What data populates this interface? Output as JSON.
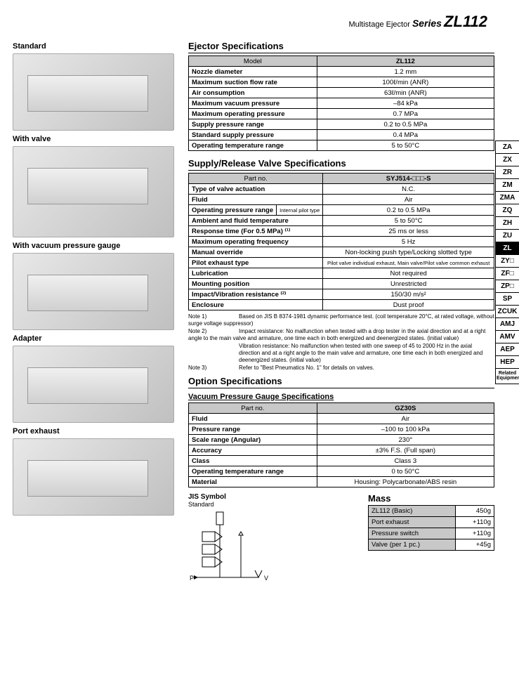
{
  "header": {
    "prefix": "Multistage Ejector",
    "series": "Series",
    "model": "ZL112"
  },
  "left": {
    "variants": [
      {
        "label": "Standard",
        "tall": false
      },
      {
        "label": "With valve",
        "tall": true
      },
      {
        "label": "With vacuum pressure gauge",
        "tall": false
      },
      {
        "label": "Adapter",
        "tall": false
      },
      {
        "label": "Port exhaust",
        "tall": false
      }
    ]
  },
  "ejector": {
    "title": "Ejector Specifications",
    "header": [
      "Model",
      "ZL112"
    ],
    "rows": [
      [
        "Nozzle diameter",
        "1.2 mm"
      ],
      [
        "Maximum suction flow rate",
        "100ℓ/min (ANR)"
      ],
      [
        "Air consumption",
        "63ℓ/min (ANR)"
      ],
      [
        "Maximum vacuum pressure",
        "–84 kPa"
      ],
      [
        "Maximum operating pressure",
        "0.7 MPa"
      ],
      [
        "Supply pressure range",
        "0.2 to 0.5 MPa"
      ],
      [
        "Standard supply pressure",
        "0.4 MPa"
      ],
      [
        "Operating temperature range",
        "5 to 50°C"
      ]
    ]
  },
  "valve": {
    "title": "Supply/Release Valve Specifications",
    "header": [
      "Part no.",
      "SYJ514-□□□-S"
    ],
    "rows": [
      {
        "l": "Type of valve actuation",
        "v": "N.C."
      },
      {
        "l": "Fluid",
        "v": "Air"
      },
      {
        "l": "Operating pressure range",
        "sub": "Internal pilot type",
        "v": "0.2 to 0.5 MPa"
      },
      {
        "l": "Ambient and fluid temperature",
        "v": "5 to 50°C"
      },
      {
        "l": "Response time (For 0.5 MPa) ⁽¹⁾",
        "v": "25 ms or less"
      },
      {
        "l": "Maximum operating frequency",
        "v": "5 Hz"
      },
      {
        "l": "Manual override",
        "v": "Non-locking push type/Locking slotted type"
      },
      {
        "l": "Pilot exhaust type",
        "v": "Pilot valve individual exhaust, Main valve/Pilot valve common exhaust",
        "small": true
      },
      {
        "l": "Lubrication",
        "v": "Not required"
      },
      {
        "l": "Mounting position",
        "v": "Unrestricted"
      },
      {
        "l": "Impact/Vibration resistance ⁽²⁾",
        "v": "150/30 m/s²"
      },
      {
        "l": "Enclosure",
        "v": "Dust proof"
      }
    ]
  },
  "notes": {
    "n1": "Based on JIS B 8374-1981 dynamic performance test. (coil temperature 20°C, at rated voltage, without surge voltage suppressor)",
    "n2": "Impact resistance: No malfunction when tested with a drop tester in the axial direction and at a right angle to the main valve and armature, one time each in both energized and deenergized states. (initial value)",
    "n2b": "Vibration resistance: No malfunction when tested with one sweep of 45 to 2000 Hz in the axial direction and at a right angle to the main valve and armature, one time each in both energized and deenergized states. (initial value)",
    "n3": "Refer to \"Best Pneumatics No. 1\" for details on valves."
  },
  "option": {
    "title": "Option Specifications"
  },
  "gauge": {
    "title": "Vacuum Pressure Gauge Specifications",
    "header": [
      "Part no.",
      "GZ30S"
    ],
    "rows": [
      [
        "Fluid",
        "Air"
      ],
      [
        "Pressure range",
        "–100 to 100 kPa"
      ],
      [
        "Scale range (Angular)",
        "230°"
      ],
      [
        "Accuracy",
        "±3% F.S. (Full span)"
      ],
      [
        "Class",
        "Class 3"
      ],
      [
        "Operating temperature range",
        "0 to 50°C"
      ],
      [
        "Material",
        "Housing: Polycarbonate/ABS resin"
      ]
    ]
  },
  "jis": {
    "label": "JIS Symbol",
    "sub": "Standard",
    "p": "P",
    "v": "V"
  },
  "mass": {
    "title": "Mass",
    "rows": [
      [
        "ZL112 (Basic)",
        "450g"
      ],
      [
        "Port exhaust",
        "+110g"
      ],
      [
        "Pressure switch",
        "+110g"
      ],
      [
        "Valve (per 1 pc.)",
        "+45g"
      ]
    ]
  },
  "tabs": [
    "ZA",
    "ZX",
    "ZR",
    "ZM",
    "ZMA",
    "ZQ",
    "ZH",
    "ZU",
    "ZL",
    "ZY□",
    "ZF□",
    "ZP□",
    "SP",
    "ZCUK",
    "AMJ",
    "AMV",
    "AEP",
    "HEP"
  ],
  "tabs_active": "ZL",
  "related": "Related Equipment"
}
